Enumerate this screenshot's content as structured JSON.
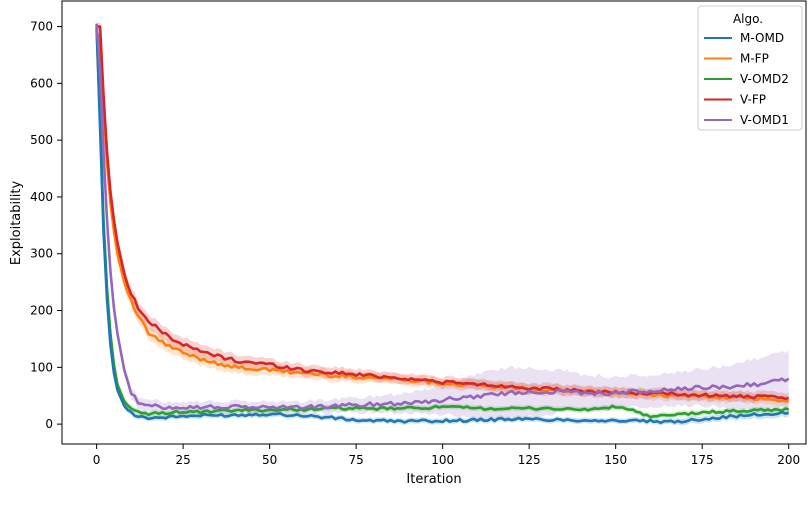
{
  "chart_data": {
    "type": "line",
    "xlabel": "Iteration",
    "ylabel": "Exploitability",
    "xlim": [
      -10,
      205
    ],
    "ylim": [
      -35,
      745
    ],
    "xticks": [
      0,
      25,
      50,
      75,
      100,
      125,
      150,
      175,
      200
    ],
    "yticks": [
      0,
      100,
      200,
      300,
      400,
      500,
      600,
      700
    ],
    "grid": false,
    "legend": {
      "title": "Algo.",
      "position": "top-right"
    },
    "shaded_band": true,
    "series": [
      {
        "name": "M-OMD",
        "color": "#1f77b4",
        "x": [
          0,
          1,
          2,
          3,
          4,
          5,
          6,
          8,
          10,
          12,
          15,
          20,
          25,
          30,
          40,
          50,
          60,
          70,
          75,
          80,
          90,
          100,
          110,
          120,
          130,
          140,
          150,
          160,
          165,
          170,
          180,
          190,
          200
        ],
        "y": [
          700,
          520,
          340,
          220,
          140,
          90,
          60,
          32,
          20,
          14,
          11,
          12,
          14,
          15,
          16,
          18,
          15,
          10,
          7,
          6,
          5,
          6,
          7,
          9,
          8,
          7,
          6,
          5,
          3,
          6,
          12,
          16,
          20
        ],
        "band": [
          6,
          6,
          6,
          6,
          6,
          6,
          5,
          5,
          5,
          5,
          5,
          5,
          5,
          5,
          5,
          5,
          5,
          5,
          5,
          5,
          5,
          5,
          5,
          5,
          5,
          5,
          5,
          5,
          5,
          6,
          6,
          7,
          7
        ]
      },
      {
        "name": "M-FP",
        "color": "#ff7f0e",
        "x": [
          0,
          1,
          2,
          3,
          4,
          5,
          6,
          8,
          10,
          12,
          15,
          20,
          25,
          30,
          40,
          50,
          60,
          70,
          80,
          90,
          100,
          110,
          120,
          130,
          140,
          150,
          160,
          170,
          180,
          190,
          200
        ],
        "y": [
          690,
          680,
          560,
          460,
          390,
          340,
          300,
          250,
          215,
          190,
          160,
          140,
          125,
          115,
          100,
          95,
          90,
          85,
          82,
          78,
          72,
          68,
          64,
          60,
          58,
          55,
          52,
          50,
          48,
          45,
          40
        ],
        "band": [
          6,
          8,
          12,
          14,
          14,
          14,
          13,
          12,
          12,
          12,
          12,
          12,
          12,
          11,
          11,
          10,
          10,
          10,
          9,
          9,
          9,
          9,
          9,
          9,
          9,
          9,
          9,
          9,
          9,
          9,
          9
        ]
      },
      {
        "name": "V-OMD2",
        "color": "#2ca02c",
        "x": [
          0,
          1,
          2,
          3,
          4,
          5,
          6,
          8,
          10,
          12,
          15,
          20,
          25,
          30,
          40,
          50,
          60,
          70,
          80,
          90,
          100,
          110,
          120,
          130,
          140,
          150,
          155,
          160,
          170,
          180,
          190,
          200
        ],
        "y": [
          695,
          540,
          360,
          240,
          160,
          105,
          70,
          40,
          26,
          20,
          18,
          20,
          22,
          21,
          24,
          25,
          26,
          28,
          27,
          28,
          30,
          28,
          27,
          28,
          25,
          30,
          25,
          12,
          18,
          22,
          24,
          26
        ],
        "band": [
          6,
          6,
          6,
          6,
          6,
          6,
          6,
          6,
          5,
          5,
          5,
          5,
          5,
          5,
          5,
          5,
          5,
          5,
          5,
          5,
          5,
          5,
          5,
          5,
          5,
          5,
          5,
          5,
          5,
          5,
          5,
          5
        ]
      },
      {
        "name": "V-FP",
        "color": "#d62728",
        "x": [
          0,
          1,
          2,
          3,
          4,
          5,
          6,
          8,
          10,
          12,
          15,
          20,
          25,
          30,
          40,
          50,
          60,
          70,
          80,
          90,
          100,
          110,
          120,
          130,
          140,
          150,
          160,
          170,
          180,
          190,
          200
        ],
        "y": [
          700,
          700,
          580,
          480,
          410,
          360,
          320,
          265,
          230,
          205,
          180,
          158,
          140,
          128,
          112,
          105,
          95,
          90,
          85,
          80,
          74,
          70,
          66,
          62,
          58,
          56,
          54,
          52,
          50,
          48,
          46
        ],
        "band": [
          6,
          8,
          10,
          12,
          12,
          12,
          12,
          12,
          12,
          12,
          12,
          12,
          12,
          12,
          11,
          10,
          10,
          10,
          9,
          9,
          9,
          9,
          9,
          9,
          9,
          9,
          9,
          9,
          9,
          9,
          9
        ]
      },
      {
        "name": "V-OMD1",
        "color": "#9467bd",
        "x": [
          0,
          1,
          2,
          3,
          4,
          5,
          6,
          8,
          10,
          12,
          15,
          20,
          25,
          30,
          40,
          50,
          60,
          70,
          80,
          90,
          100,
          110,
          120,
          130,
          140,
          150,
          160,
          170,
          180,
          190,
          200
        ],
        "y": [
          705,
          620,
          480,
          360,
          270,
          205,
          160,
          95,
          55,
          38,
          32,
          30,
          30,
          30,
          30,
          30,
          30,
          32,
          35,
          38,
          42,
          50,
          55,
          58,
          56,
          55,
          58,
          62,
          65,
          70,
          80
        ],
        "band": [
          10,
          10,
          10,
          10,
          10,
          10,
          10,
          10,
          10,
          10,
          10,
          10,
          10,
          10,
          10,
          10,
          10,
          12,
          14,
          18,
          25,
          40,
          45,
          40,
          32,
          28,
          28,
          30,
          35,
          45,
          50
        ]
      }
    ]
  }
}
